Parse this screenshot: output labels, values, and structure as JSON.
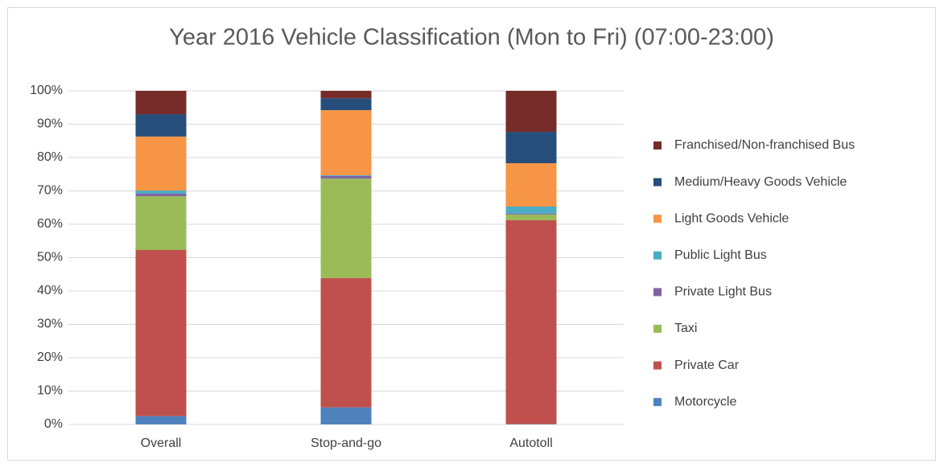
{
  "chart_data": {
    "type": "stacked_bar",
    "title": "Year 2016 Vehicle Classification (Mon to Fri) (07:00-23:00)",
    "categories": [
      "Overall",
      "Stop-and-go",
      "Autotoll"
    ],
    "series": [
      {
        "name": "Motorcycle",
        "color": "#4f81bd",
        "values": [
          2.5,
          5.1,
          0.1
        ]
      },
      {
        "name": "Private Car",
        "color": "#c0504d",
        "values": [
          49.8,
          38.8,
          61.1
        ]
      },
      {
        "name": "Taxi",
        "color": "#9bbb59",
        "values": [
          16.1,
          29.8,
          1.7
        ]
      },
      {
        "name": "Private Light Bus",
        "color": "#8064a2",
        "values": [
          0.8,
          0.8,
          0.3
        ]
      },
      {
        "name": "Public Light Bus",
        "color": "#4bacc6",
        "values": [
          0.9,
          0.2,
          2.1
        ]
      },
      {
        "name": "Light Goods Vehicle",
        "color": "#f79646",
        "values": [
          16.2,
          19.5,
          13.0
        ]
      },
      {
        "name": "Medium/Heavy Goods Vehicle",
        "color": "#264e7b",
        "values": [
          6.7,
          3.6,
          9.4
        ]
      },
      {
        "name": "Franchised/Non-franchised Bus",
        "color": "#772c2a",
        "values": [
          7.0,
          2.2,
          12.3
        ]
      }
    ],
    "ylim": [
      0,
      100
    ],
    "yticks": [
      {
        "value": 0,
        "label": "0%"
      },
      {
        "value": 10,
        "label": "10%"
      },
      {
        "value": 20,
        "label": "20%"
      },
      {
        "value": 30,
        "label": "30%"
      },
      {
        "value": 40,
        "label": "40%"
      },
      {
        "value": 50,
        "label": "50%"
      },
      {
        "value": 60,
        "label": "60%"
      },
      {
        "value": 70,
        "label": "70%"
      },
      {
        "value": 80,
        "label": "80%"
      },
      {
        "value": 90,
        "label": "90%"
      },
      {
        "value": 100,
        "label": "100%"
      }
    ],
    "grid": true,
    "legend": "right"
  }
}
